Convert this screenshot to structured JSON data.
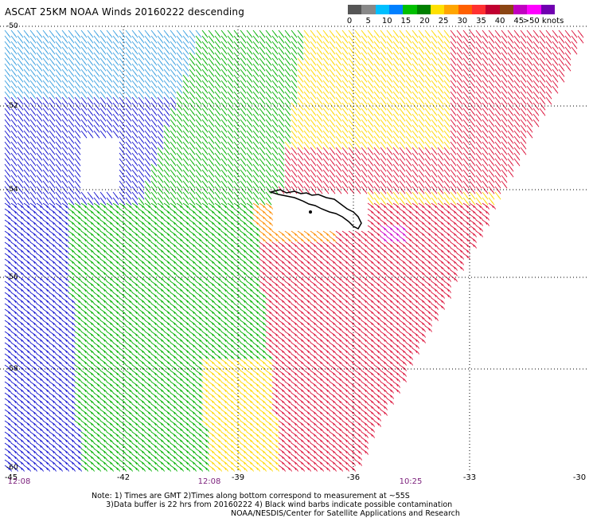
{
  "title": "ASCAT 25KM NOAA Winds 20160222 descending",
  "legend": {
    "colors": [
      "#555555",
      "#888888",
      "#00bfff",
      "#0080ff",
      "#00c000",
      "#008000",
      "#ffe000",
      "#ffa500",
      "#ff6000",
      "#ff3030",
      "#c00030",
      "#8b4513",
      "#c000c0",
      "#ff00ff",
      "#7000b0"
    ],
    "labels": [
      {
        "text": "0",
        "at": 0
      },
      {
        "text": "5",
        "at": 1
      },
      {
        "text": "10",
        "at": 2
      },
      {
        "text": "15",
        "at": 3
      },
      {
        "text": "20",
        "at": 4
      },
      {
        "text": "25",
        "at": 5
      },
      {
        "text": "30",
        "at": 6
      },
      {
        "text": "35",
        "at": 7
      },
      {
        "text": "40",
        "at": 8
      },
      {
        "text": "45",
        "at": 9
      },
      {
        "text": ">50 knots",
        "at": 10.3
      }
    ]
  },
  "axes": {
    "lat_labels": [
      "-50",
      "-52",
      "-54",
      "-56",
      "-58",
      "-60"
    ],
    "lon_labels": [
      "-45",
      "-42",
      "-39",
      "-36",
      "-33",
      "-30"
    ],
    "time_labels": [
      "12:08",
      "12:08",
      "10:25"
    ]
  },
  "note": "Note: 1) Times are GMT 2)Times along bottom correspond to measurement at ~55S\n      3)Data buffer is 22 hrs from 20160222 4) Black wind barbs indicate possible contamination",
  "credit": "NOAA/NESDIS/Center for Satellite Applications and Research",
  "colors": {
    "light_blue": "#3aa0e0",
    "blue": "#1515d0",
    "green": "#00b000",
    "yellow": "#ffd700",
    "orange": "#ff8c00",
    "red": "#dc143c",
    "purple": "#cc00cc",
    "grid": "#000000"
  },
  "map_features": [
    "South Georgia Island coastline (black)",
    "wind barbs"
  ]
}
